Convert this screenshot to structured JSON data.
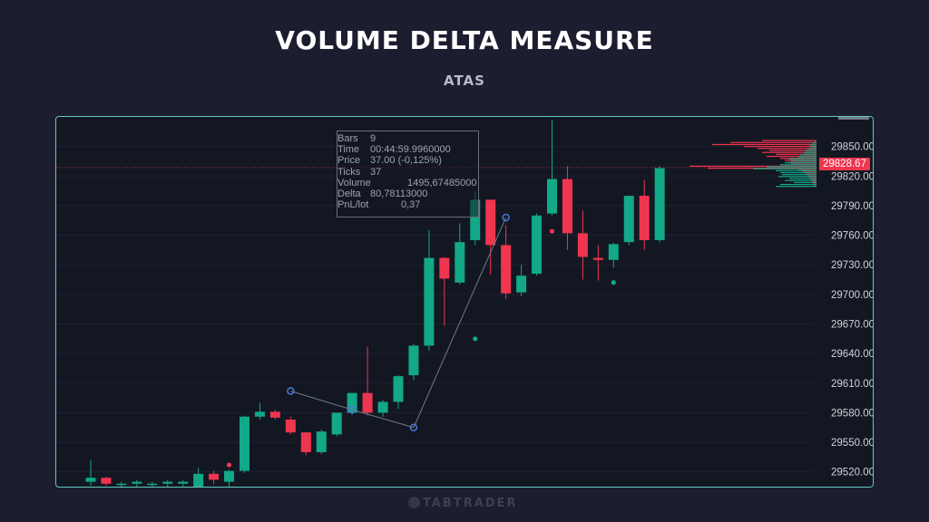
{
  "header": {
    "title": "VOLUME DELTA MEASURE",
    "subtitle": "ATAS"
  },
  "colors": {
    "up": "#12a888",
    "down": "#f0354f",
    "frame": "#5fc9c3",
    "measure_line": "#6e7a86",
    "anchor": "#4b78d9"
  },
  "info_box": {
    "rows": [
      {
        "key": "Bars",
        "value": "9"
      },
      {
        "key": "Time",
        "value": "00:44:59.9960000"
      },
      {
        "key": "Price",
        "value": "37.00 (-0,125%)"
      },
      {
        "key": "Ticks",
        "value": "37"
      },
      {
        "key": "Volume",
        "value": "1495,67485000"
      },
      {
        "key": "Delta",
        "value": "80,78113000"
      },
      {
        "key": "PnL/lot",
        "value": "0,37"
      }
    ]
  },
  "chart_data": {
    "type": "candlestick",
    "title": "VOLUME DELTA MEASURE",
    "price_axis": {
      "min": 29505,
      "max": 29880,
      "ticks": [
        "29850.00",
        "29820.00",
        "29790.00",
        "29760.00",
        "29730.00",
        "29700.00",
        "29670.00",
        "29640.00",
        "29610.00",
        "29580.00",
        "29550.00",
        "29520.00"
      ],
      "tick_values": [
        29850,
        29820,
        29790,
        29760,
        29730,
        29700,
        29670,
        29640,
        29610,
        29580,
        29550,
        29520
      ]
    },
    "current_price": "29828.67",
    "current_price_value": 29828.67,
    "candles": [
      {
        "o": 29510,
        "h": 29532,
        "l": 29506,
        "c": 29514
      },
      {
        "o": 29514,
        "h": 29515,
        "l": 29506,
        "c": 29508
      },
      {
        "o": 29507,
        "h": 29510,
        "l": 29505,
        "c": 29508
      },
      {
        "o": 29508,
        "h": 29512,
        "l": 29505,
        "c": 29510
      },
      {
        "o": 29507,
        "h": 29510,
        "l": 29505,
        "c": 29508
      },
      {
        "o": 29508,
        "h": 29512,
        "l": 29505,
        "c": 29510
      },
      {
        "o": 29508,
        "h": 29512,
        "l": 29505,
        "c": 29510
      },
      {
        "o": 29505,
        "h": 29524,
        "l": 29505,
        "c": 29518
      },
      {
        "o": 29518,
        "h": 29521,
        "l": 29508,
        "c": 29512
      },
      {
        "o": 29510,
        "h": 29522,
        "l": 29505,
        "c": 29521
      },
      {
        "o": 29521,
        "h": 29577,
        "l": 29519,
        "c": 29576
      },
      {
        "o": 29576,
        "h": 29590,
        "l": 29573,
        "c": 29581
      },
      {
        "o": 29581,
        "h": 29583,
        "l": 29573,
        "c": 29575
      },
      {
        "o": 29573,
        "h": 29576,
        "l": 29558,
        "c": 29560
      },
      {
        "o": 29560,
        "h": 29560,
        "l": 29537,
        "c": 29540
      },
      {
        "o": 29540,
        "h": 29563,
        "l": 29538,
        "c": 29561
      },
      {
        "o": 29558,
        "h": 29580,
        "l": 29556,
        "c": 29580
      },
      {
        "o": 29580,
        "h": 29600,
        "l": 29578,
        "c": 29600
      },
      {
        "o": 29600,
        "h": 29647,
        "l": 29577,
        "c": 29580
      },
      {
        "o": 29580,
        "h": 29593,
        "l": 29576,
        "c": 29591
      },
      {
        "o": 29591,
        "h": 29618,
        "l": 29584,
        "c": 29617
      },
      {
        "o": 29618,
        "h": 29650,
        "l": 29613,
        "c": 29648
      },
      {
        "o": 29648,
        "h": 29765,
        "l": 29643,
        "c": 29737
      },
      {
        "o": 29737,
        "h": 29738,
        "l": 29668,
        "c": 29716
      },
      {
        "o": 29712,
        "h": 29772,
        "l": 29710,
        "c": 29753
      },
      {
        "o": 29755,
        "h": 29805,
        "l": 29750,
        "c": 29796
      },
      {
        "o": 29796,
        "h": 29796,
        "l": 29720,
        "c": 29750
      },
      {
        "o": 29750,
        "h": 29770,
        "l": 29695,
        "c": 29701
      },
      {
        "o": 29702,
        "h": 29730,
        "l": 29698,
        "c": 29719
      },
      {
        "o": 29721,
        "h": 29782,
        "l": 29719,
        "c": 29780
      },
      {
        "o": 29782,
        "h": 29877,
        "l": 29780,
        "c": 29817
      },
      {
        "o": 29817,
        "h": 29830,
        "l": 29745,
        "c": 29762
      },
      {
        "o": 29762,
        "h": 29785,
        "l": 29715,
        "c": 29738
      },
      {
        "o": 29737,
        "h": 29750,
        "l": 29714,
        "c": 29735
      },
      {
        "o": 29735,
        "h": 29752,
        "l": 29727,
        "c": 29751
      },
      {
        "o": 29753,
        "h": 29800,
        "l": 29750,
        "c": 29800
      },
      {
        "o": 29800,
        "h": 29816,
        "l": 29745,
        "c": 29755
      },
      {
        "o": 29755,
        "h": 29830,
        "l": 29753,
        "c": 29828
      }
    ],
    "dots": [
      {
        "i": 9,
        "price": 29527,
        "dir": "down"
      },
      {
        "i": 25,
        "price": 29655,
        "dir": "up"
      },
      {
        "i": 30,
        "price": 29764,
        "dir": "down"
      },
      {
        "i": 34,
        "price": 29712,
        "dir": "up"
      }
    ],
    "measure_points": [
      {
        "i": 13,
        "price": 29602
      },
      {
        "i": 17,
        "price": 29583
      },
      {
        "i": 21,
        "price": 29565
      },
      {
        "i": 27,
        "price": 29778
      }
    ],
    "volume_profile": [
      {
        "price": 29856,
        "buy": 2,
        "sell": 60
      },
      {
        "price": 29854,
        "buy": 5,
        "sell": 95
      },
      {
        "price": 29852,
        "buy": 8,
        "sell": 115
      },
      {
        "price": 29850,
        "buy": 6,
        "sell": 80
      },
      {
        "price": 29848,
        "buy": 10,
        "sell": 65
      },
      {
        "price": 29846,
        "buy": 12,
        "sell": 52
      },
      {
        "price": 29844,
        "buy": 14,
        "sell": 60
      },
      {
        "price": 29842,
        "buy": 18,
        "sell": 45
      },
      {
        "price": 29840,
        "buy": 20,
        "sell": 55
      },
      {
        "price": 29838,
        "buy": 30,
        "sell": 40
      },
      {
        "price": 29836,
        "buy": 28,
        "sell": 35
      },
      {
        "price": 29834,
        "buy": 35,
        "sell": 30
      },
      {
        "price": 29832,
        "buy": 40,
        "sell": 28
      },
      {
        "price": 29830,
        "buy": 55,
        "sell": 140
      },
      {
        "price": 29828,
        "buy": 70,
        "sell": 120
      },
      {
        "price": 29826,
        "buy": 45,
        "sell": 20
      },
      {
        "price": 29824,
        "buy": 40,
        "sell": 15
      },
      {
        "price": 29822,
        "buy": 38,
        "sell": 12
      },
      {
        "price": 29820,
        "buy": 42,
        "sell": 10
      },
      {
        "price": 29818,
        "buy": 30,
        "sell": 8
      },
      {
        "price": 29816,
        "buy": 35,
        "sell": 6
      },
      {
        "price": 29814,
        "buy": 25,
        "sell": 5
      },
      {
        "price": 29812,
        "buy": 40,
        "sell": 4
      },
      {
        "price": 29810,
        "buy": 45,
        "sell": 3
      }
    ]
  },
  "footer": {
    "watermark": "TABTRADER"
  }
}
